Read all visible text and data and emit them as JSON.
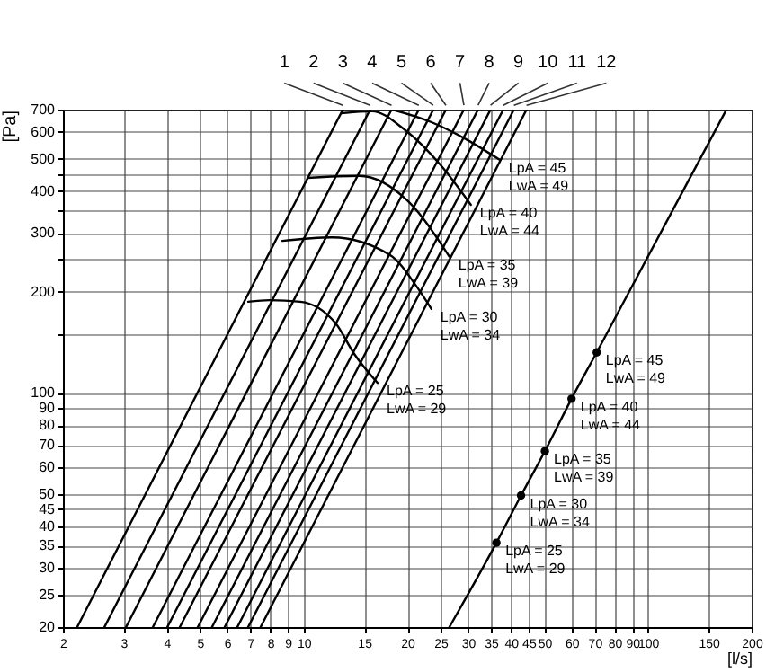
{
  "chart_data": {
    "type": "line",
    "xlabel": "[l/s]",
    "ylabel": "[Pa]",
    "log": "xy",
    "grid": true,
    "xlim": [
      2,
      200
    ],
    "ylim": [
      20,
      700
    ],
    "xticks": [
      2,
      3,
      4,
      5,
      6,
      7,
      8,
      9,
      10,
      15,
      20,
      25,
      30,
      35,
      40,
      45,
      50,
      60,
      70,
      80,
      90,
      100,
      150,
      200
    ],
    "yticks": [
      20,
      25,
      30,
      35,
      40,
      45,
      50,
      60,
      70,
      80,
      90,
      100,
      {
        "value": 150,
        "label": null
      },
      200,
      {
        "value": 250,
        "label": null
      },
      300,
      {
        "value": 350,
        "label": null
      },
      400,
      {
        "value": 450,
        "label": null
      },
      500,
      600,
      700
    ],
    "series": [
      {
        "name": "1",
        "color": "#000000",
        "x": [
          2.2,
          13.0
        ],
        "values": [
          20,
          700
        ]
      },
      {
        "name": "2",
        "color": "#000000",
        "x": [
          2.64,
          15.6
        ],
        "values": [
          20,
          700
        ]
      },
      {
        "name": "3",
        "color": "#000000",
        "x": [
          3.05,
          18.0
        ],
        "values": [
          20,
          700
        ]
      },
      {
        "name": "4",
        "color": "#000000",
        "x": [
          3.65,
          21.6
        ],
        "values": [
          20,
          700
        ]
      },
      {
        "name": "5",
        "color": "#000000",
        "x": [
          4.02,
          23.8
        ],
        "values": [
          20,
          700
        ]
      },
      {
        "name": "6",
        "color": "#000000",
        "x": [
          4.37,
          25.9
        ],
        "values": [
          20,
          700
        ]
      },
      {
        "name": "7",
        "color": "#000000",
        "x": [
          4.93,
          29.2
        ],
        "values": [
          20,
          700
        ]
      },
      {
        "name": "8",
        "color": "#000000",
        "x": [
          5.42,
          32.1
        ],
        "values": [
          20,
          700
        ]
      },
      {
        "name": "9",
        "color": "#000000",
        "x": [
          5.9,
          34.9
        ],
        "values": [
          20,
          700
        ]
      },
      {
        "name": "10",
        "color": "#000000",
        "x": [
          6.42,
          38.0
        ],
        "values": [
          20,
          700
        ]
      },
      {
        "name": "11",
        "color": "#000000",
        "x": [
          6.9,
          40.8
        ],
        "values": [
          20,
          700
        ]
      },
      {
        "name": "12",
        "color": "#000000",
        "x": [
          7.5,
          44.4
        ],
        "values": [
          20,
          700
        ]
      },
      {
        "color": "#000000",
        "x": [
          6.9,
          7.97,
          9.78,
          12.4,
          14.0,
          16.4
        ],
        "values": [
          187,
          189,
          187,
          161,
          131,
          107
        ]
      },
      {
        "color": "#000000",
        "x": [
          8.67,
          12.1,
          17.8,
          21.4,
          23.5
        ],
        "values": [
          284,
          291,
          258,
          206,
          178
        ]
      },
      {
        "color": "#000000",
        "x": [
          10.26,
          14.5,
          20.1,
          26.5
        ],
        "values": [
          438,
          444,
          373,
          255
        ]
      },
      {
        "color": "#000000",
        "x": [
          12.9,
          15.8,
          19.6,
          25.0,
          30.6
        ],
        "values": [
          683,
          692,
          611,
          478,
          364
        ]
      },
      {
        "color": "#000000",
        "x": [
          18.1,
          23.5,
          29.9,
          37.1
        ],
        "values": [
          700,
          642,
          568,
          496
        ]
      },
      {
        "color": "#000000",
        "x": [
          26.5,
          36.3,
          42.8,
          50.2,
          60,
          71,
          169
        ],
        "values": [
          20,
          35.7,
          49.4,
          67,
          96,
          132,
          700
        ]
      },
      {
        "type": "scatter",
        "marker": "circle",
        "color": "#000000",
        "x": [
          36.3,
          42.8,
          50.2,
          60,
          71
        ],
        "values": [
          35.7,
          49.4,
          67,
          96,
          132
        ]
      }
    ],
    "annotations": [
      {
        "text": "LpA = 25\nLwA = 29",
        "x": 16.4,
        "y": 107
      },
      {
        "text": "LpA = 30\nLwA = 34",
        "x": 23.5,
        "y": 178
      },
      {
        "text": "LpA = 35\nLwA = 39",
        "x": 26.5,
        "y": 255
      },
      {
        "text": "LpA = 40\nLwA = 44",
        "x": 30.6,
        "y": 364
      },
      {
        "text": "LpA = 45\nLwA = 49",
        "x": 37.1,
        "y": 496
      },
      {
        "text": "LpA = 25\nLwA = 29",
        "x": 36.3,
        "y": 35.7
      },
      {
        "text": "LpA = 30\nLwA = 34",
        "x": 42.8,
        "y": 49.4
      },
      {
        "text": "LpA = 35\nLwA = 39",
        "x": 50.2,
        "y": 67
      },
      {
        "text": "LpA = 40\nLwA = 44",
        "x": 60,
        "y": 96
      },
      {
        "text": "LpA = 45\nLwA = 49",
        "x": 71,
        "y": 132
      }
    ]
  }
}
